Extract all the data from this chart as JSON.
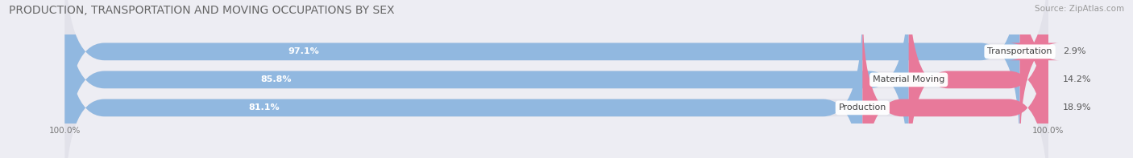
{
  "title": "PRODUCTION, TRANSPORTATION AND MOVING OCCUPATIONS BY SEX",
  "source": "Source: ZipAtlas.com",
  "categories": [
    "Transportation",
    "Material Moving",
    "Production"
  ],
  "male_values": [
    97.1,
    85.8,
    81.1
  ],
  "female_values": [
    2.9,
    14.2,
    18.9
  ],
  "male_color": "#91b8e0",
  "female_color": "#e8799a",
  "bar_bg_color": "#e2e2ea",
  "title_fontsize": 10,
  "source_fontsize": 7.5,
  "bar_label_fontsize": 8,
  "category_fontsize": 8,
  "legend_fontsize": 8.5,
  "axis_label_fontsize": 7.5,
  "background_color": "#ededf3",
  "bar_height": 0.62,
  "total_width": 100
}
